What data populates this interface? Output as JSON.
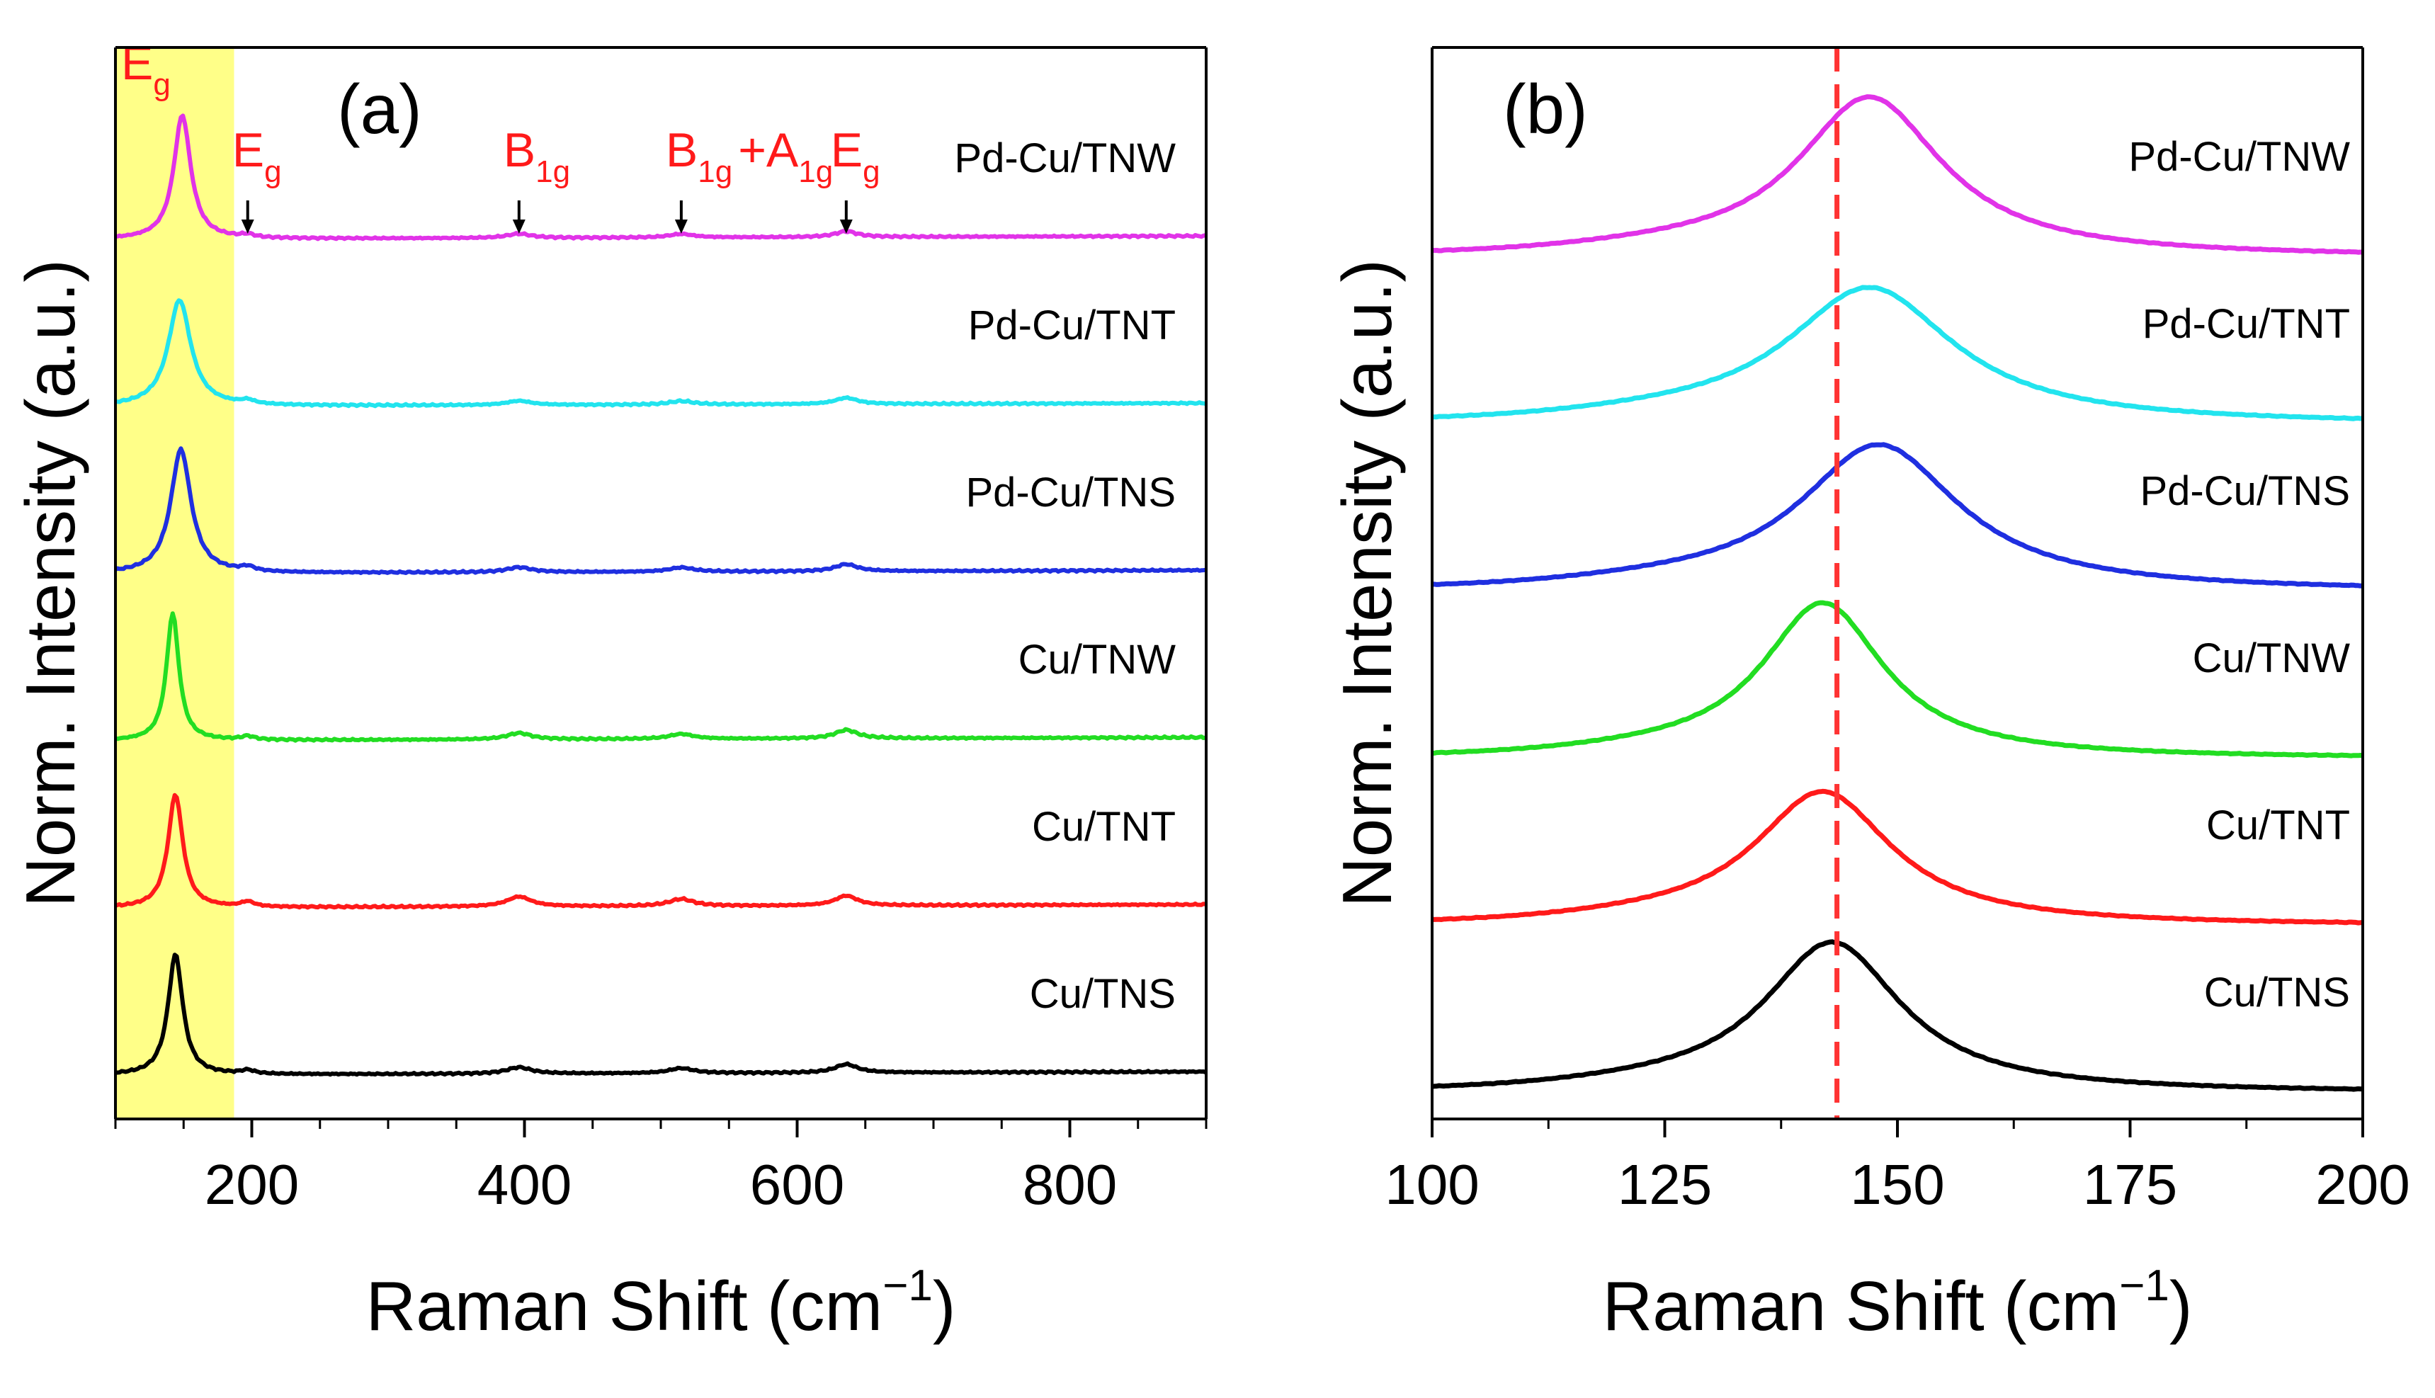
{
  "chart_data": [
    {
      "panel_label": "(a)",
      "type": "line",
      "xlabel": "Raman Shift (cm",
      "xlabel_sup": "−1",
      "xlabel_end": ")",
      "ylabel": "Norm. Intensity (a.u.)",
      "xlim": [
        100,
        900
      ],
      "x_ticks": [
        200,
        400,
        600,
        800
      ],
      "x_tick_labels": [
        "200",
        "400",
        "600",
        "800"
      ],
      "x_minor_step": 50,
      "highlight_range": [
        100,
        187
      ],
      "highlight_color": "#ffff88",
      "series": [
        {
          "name": "Cu/TNS",
          "color": "#000000",
          "offset": 0.0,
          "peaks": [
            [
              144,
              170,
              6.5
            ],
            [
              197,
              5,
              6
            ],
            [
              396,
              9,
              11
            ],
            [
              515,
              7,
              11
            ],
            [
              636,
              12,
              10
            ]
          ]
        },
        {
          "name": "Cu/TNT",
          "color": "#ff1a1a",
          "offset": 1.0,
          "peaks": [
            [
              144,
              160,
              6.5
            ],
            [
              197,
              7,
              6
            ],
            [
              396,
              14,
              11
            ],
            [
              515,
              10,
              11
            ],
            [
              636,
              14,
              10
            ]
          ]
        },
        {
          "name": "Cu/TNW",
          "color": "#22dd22",
          "offset": 2.0,
          "peaks": [
            [
              142,
              180,
              5.5
            ],
            [
              197,
              5,
              6
            ],
            [
              396,
              9,
              11
            ],
            [
              515,
              7,
              11
            ],
            [
              636,
              12,
              10
            ]
          ]
        },
        {
          "name": "Pd-Cu/TNS",
          "color": "#1f2fe0",
          "offset": 3.0,
          "peaks": [
            [
              148,
              175,
              9
            ],
            [
              197,
              6,
              6
            ],
            [
              396,
              7,
              11
            ],
            [
              515,
              6,
              11
            ],
            [
              636,
              10,
              10
            ]
          ]
        },
        {
          "name": "Pd-Cu/TNT",
          "color": "#22e4ee",
          "offset": 4.0,
          "peaks": [
            [
              147,
              150,
              10
            ],
            [
              197,
              5,
              6
            ],
            [
              396,
              6,
              11
            ],
            [
              515,
              5,
              11
            ],
            [
              636,
              9,
              10
            ]
          ]
        },
        {
          "name": "Pd-Cu/TNW",
          "color": "#e133e8",
          "offset": 5.0,
          "peaks": [
            [
              149,
              175,
              7.5
            ],
            [
              197,
              4,
              6
            ],
            [
              396,
              6,
              11
            ],
            [
              515,
              5,
              11
            ],
            [
              636,
              8,
              10
            ]
          ]
        }
      ],
      "annotations": [
        {
          "main": "E",
          "sub": "g",
          "x": 100,
          "arrow": false,
          "color": "#ff1a1a"
        },
        {
          "main": "E",
          "sub": "g",
          "x": 197,
          "arrow": true,
          "color": "#ff1a1a"
        },
        {
          "main": "B",
          "sub": "1g",
          "x": 396,
          "arrow": true,
          "color": "#ff1a1a"
        },
        {
          "main": "B",
          "sub": "1g",
          "x": 515,
          "arrow": true,
          "color": "#ff1a1a",
          "extra_main": "+A",
          "extra_sub": "1g"
        },
        {
          "main": "E",
          "sub": "g",
          "x": 636,
          "arrow": true,
          "color": "#ff1a1a"
        }
      ]
    },
    {
      "panel_label": "(b)",
      "type": "line",
      "xlabel": "Raman Shift (cm",
      "xlabel_sup": "−1",
      "xlabel_end": ")",
      "ylabel": "Norm. Intensity (a.u.)",
      "xlim": [
        100,
        200
      ],
      "x_ticks": [
        100,
        125,
        150,
        175,
        200
      ],
      "x_tick_labels": [
        "100",
        "125",
        "150",
        "175",
        "200"
      ],
      "x_minor_step": 12.5,
      "reference_line_x": 143.5,
      "reference_line_color": "#ff3333",
      "series": [
        {
          "name": "Cu/TNS",
          "color": "#000000",
          "offset": 0.0,
          "center": 143,
          "amp": 90,
          "width": 9
        },
        {
          "name": "Cu/TNT",
          "color": "#ff1a1a",
          "offset": 1.0,
          "center": 142,
          "amp": 80,
          "width": 9
        },
        {
          "name": "Cu/TNW",
          "color": "#22dd22",
          "offset": 2.0,
          "center": 142,
          "amp": 93,
          "width": 8
        },
        {
          "name": "Pd-Cu/TNS",
          "color": "#1f2fe0",
          "offset": 3.0,
          "center": 148,
          "amp": 88,
          "width": 10.5
        },
        {
          "name": "Pd-Cu/TNT",
          "color": "#22e4ee",
          "offset": 4.0,
          "center": 147,
          "amp": 82,
          "width": 11
        },
        {
          "name": "Pd-Cu/TNW",
          "color": "#e133e8",
          "offset": 5.0,
          "center": 147,
          "amp": 96,
          "width": 9.5
        }
      ]
    }
  ]
}
